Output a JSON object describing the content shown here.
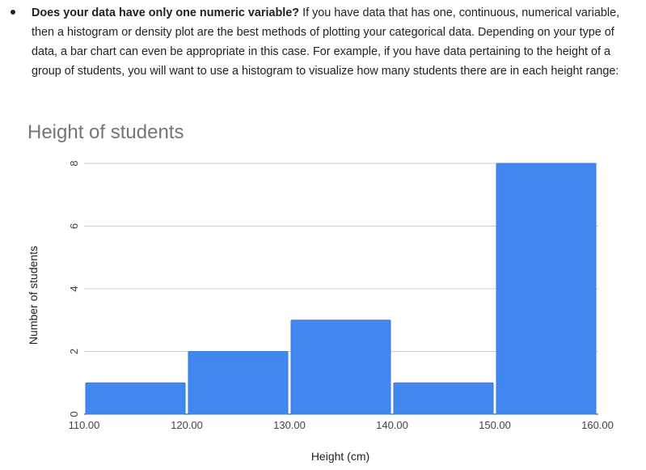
{
  "paragraph": {
    "bold_lead": "Does your data have only one numeric variable?",
    "rest": " If you have data that has one, continuous, numerical variable, then a histogram or density plot are the best methods of plotting your categorical data. Depending on your type of data, a bar chart can even be appropriate in this case. For example, if you have data pertaining to the height of a group of students, you will want to use a histogram to visualize how many students there are in each height range:"
  },
  "chart_data": {
    "type": "bar",
    "title": "Height of students",
    "xlabel": "Height (cm)",
    "ylabel": "Number of students",
    "bins": [
      {
        "from": 110,
        "to": 120,
        "count": 1
      },
      {
        "from": 120,
        "to": 130,
        "count": 2
      },
      {
        "from": 130,
        "to": 140,
        "count": 3
      },
      {
        "from": 140,
        "to": 150,
        "count": 1
      },
      {
        "from": 150,
        "to": 160,
        "count": 8
      }
    ],
    "x_ticks": [
      "110.00",
      "120.00",
      "130.00",
      "140.00",
      "150.00",
      "160.00"
    ],
    "x_tick_values": [
      110,
      120,
      130,
      140,
      150,
      160
    ],
    "y_ticks": [
      0,
      2,
      4,
      6,
      8
    ],
    "xlim": [
      110,
      160
    ],
    "ylim": [
      0,
      8
    ],
    "grid": true,
    "bar_color": "#4287f0"
  }
}
